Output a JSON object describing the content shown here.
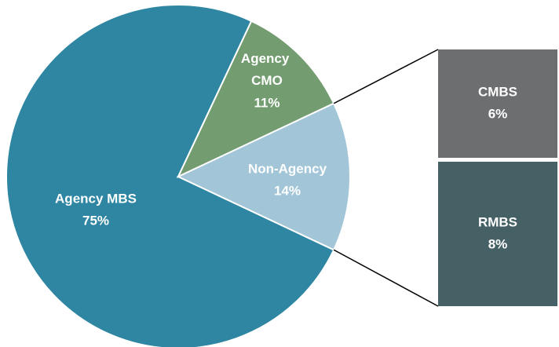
{
  "chart_data": {
    "type": "pie",
    "categories": [
      "Agency MBS",
      "Agency CMO",
      "Non-Agency"
    ],
    "values": [
      75,
      11,
      14
    ],
    "value_labels": [
      "75%",
      "11%",
      "14%"
    ],
    "colors": [
      "#2e86a3",
      "#739c70",
      "#a2c6d8"
    ],
    "breakdown": {
      "categories": [
        "CMBS",
        "RMBS"
      ],
      "values": [
        6,
        8
      ],
      "value_labels": [
        "6%",
        "8%"
      ],
      "colors": [
        "#6d6e70",
        "#466166"
      ]
    }
  }
}
